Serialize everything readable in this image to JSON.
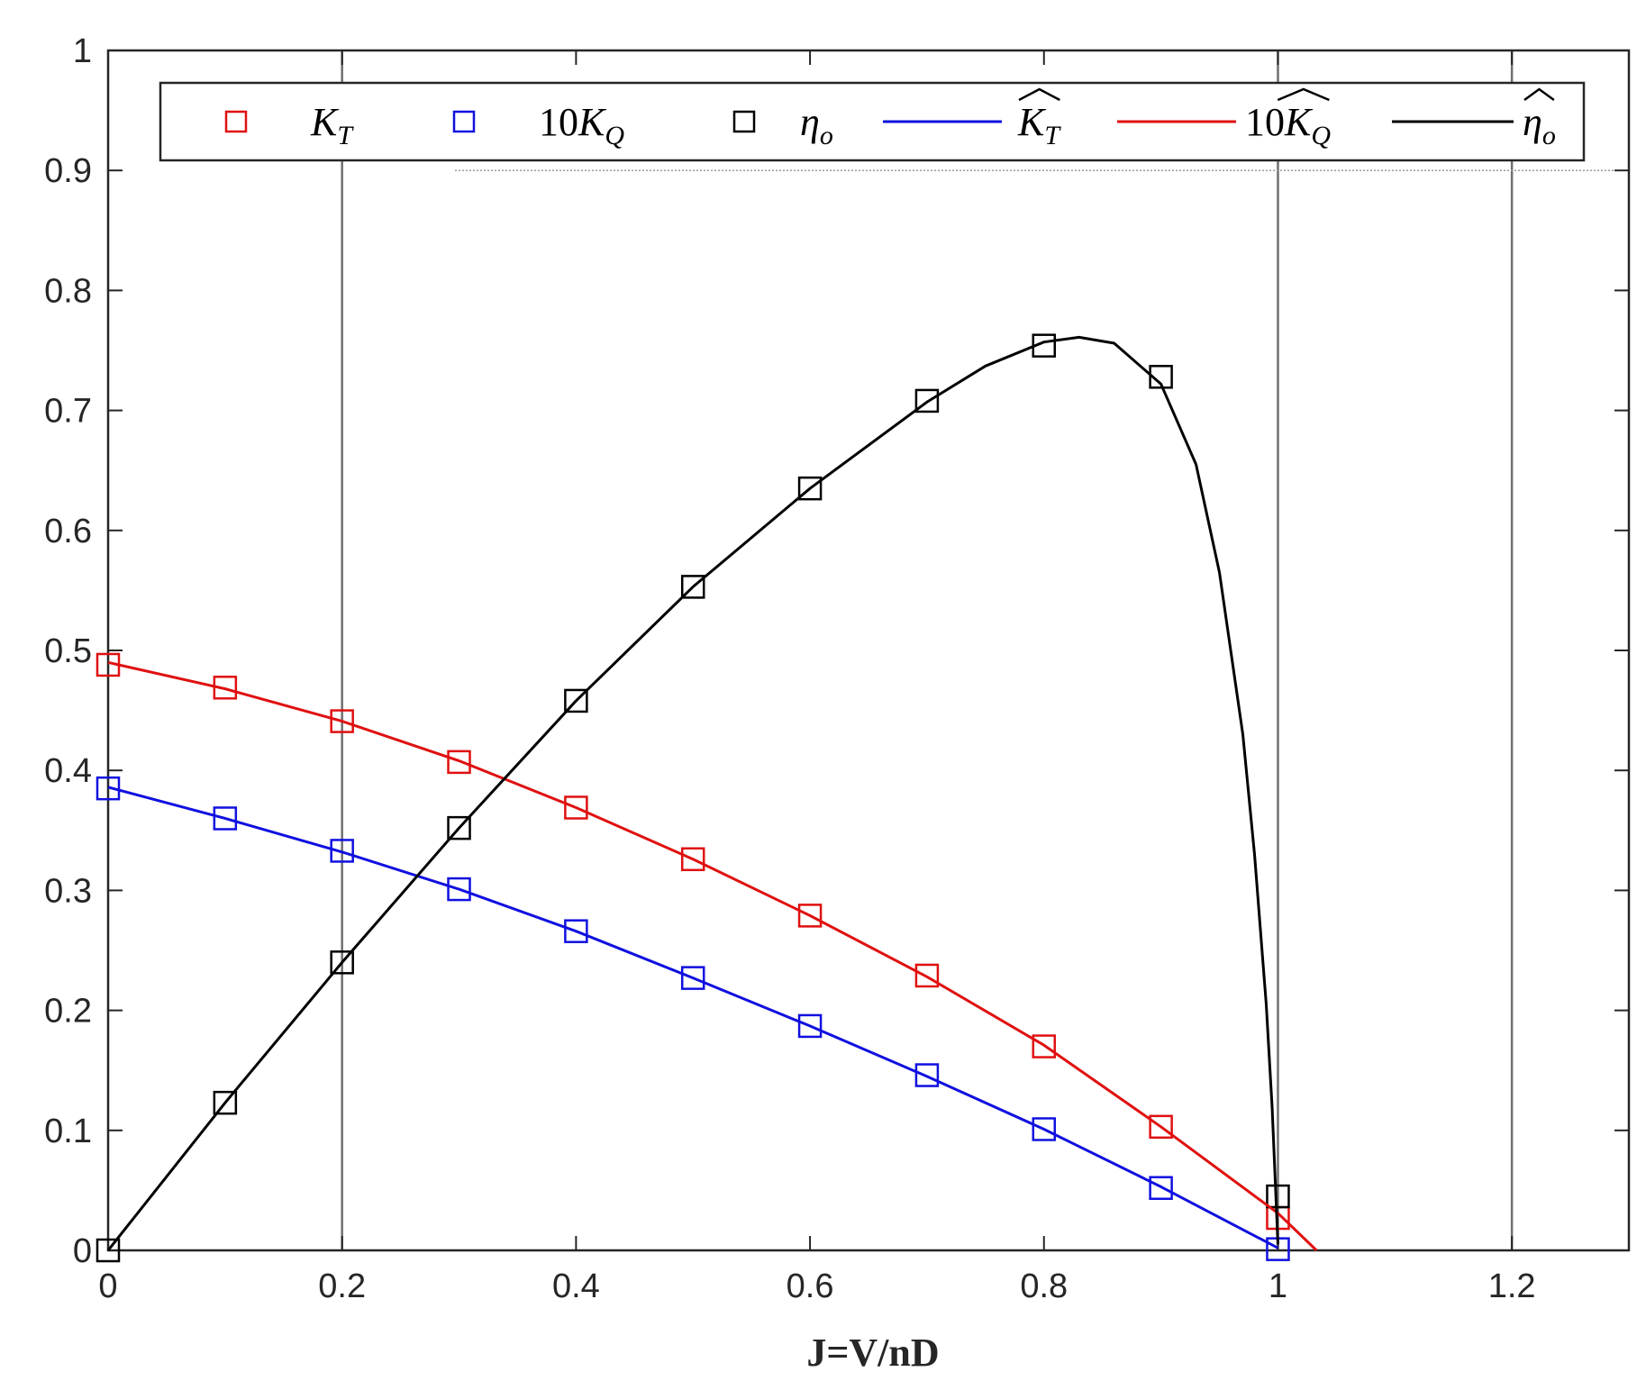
{
  "chart_data": {
    "type": "line",
    "xlabel": "J=V/nD",
    "ylabel": "",
    "xlim": [
      0,
      1.3
    ],
    "ylim": [
      0,
      1
    ],
    "xticks": [
      "0",
      "0.2",
      "0.4",
      "0.6",
      "0.8",
      "1",
      "1.2"
    ],
    "yticks": [
      "0",
      "0.1",
      "0.2",
      "0.3",
      "0.4",
      "0.5",
      "0.6",
      "0.7",
      "0.8",
      "0.9",
      "1"
    ],
    "vertical_gridlines": [
      0.2,
      1.0,
      1.2
    ],
    "legend_position": "top",
    "series": [
      {
        "name": "K_T",
        "kind": "markers",
        "marker": "square",
        "color": "#e01010",
        "x": [
          0,
          0.1,
          0.2,
          0.3,
          0.4,
          0.5,
          0.6,
          0.7,
          0.8,
          0.9,
          1.0
        ],
        "y": [
          0.488,
          0.469,
          0.441,
          0.407,
          0.369,
          0.326,
          0.279,
          0.229,
          0.17,
          0.103,
          0.027
        ]
      },
      {
        "name": "10K_Q",
        "kind": "markers",
        "marker": "square",
        "color": "#1010e0",
        "x": [
          0,
          0.1,
          0.2,
          0.3,
          0.4,
          0.5,
          0.6,
          0.7,
          0.8,
          0.9,
          1.0
        ],
        "y": [
          0.385,
          0.36,
          0.333,
          0.301,
          0.266,
          0.227,
          0.187,
          0.146,
          0.101,
          0.052,
          0.001
        ]
      },
      {
        "name": "η_o",
        "kind": "markers",
        "marker": "square",
        "color": "#000000",
        "x": [
          0,
          0.1,
          0.2,
          0.3,
          0.4,
          0.5,
          0.6,
          0.7,
          0.8,
          0.9,
          1.0
        ],
        "y": [
          0.0,
          0.123,
          0.24,
          0.352,
          0.458,
          0.553,
          0.635,
          0.708,
          0.754,
          0.728,
          0.045
        ]
      },
      {
        "name": "K_T fit",
        "kind": "line",
        "color": "#1010e0",
        "x": [
          0,
          0.1,
          0.2,
          0.3,
          0.4,
          0.5,
          0.6,
          0.7,
          0.8,
          0.9,
          1.0
        ],
        "y": [
          0.386,
          0.36,
          0.332,
          0.301,
          0.266,
          0.227,
          0.187,
          0.145,
          0.101,
          0.053,
          0.002
        ]
      },
      {
        "name": "10K_Q fit",
        "kind": "line",
        "color": "#e01010",
        "x": [
          0,
          0.1,
          0.2,
          0.3,
          0.4,
          0.5,
          0.6,
          0.7,
          0.8,
          0.9,
          1.0,
          1.033
        ],
        "y": [
          0.49,
          0.468,
          0.441,
          0.408,
          0.369,
          0.326,
          0.279,
          0.228,
          0.171,
          0.103,
          0.031,
          0.0
        ]
      },
      {
        "name": "η_o fit",
        "kind": "line",
        "color": "#000000",
        "x": [
          0,
          0.1,
          0.2,
          0.3,
          0.4,
          0.5,
          0.6,
          0.7,
          0.75,
          0.8,
          0.83,
          0.86,
          0.9,
          0.93,
          0.95,
          0.97,
          0.98,
          0.99,
          0.995,
          1.0
        ],
        "y": [
          0.0,
          0.123,
          0.24,
          0.352,
          0.458,
          0.553,
          0.635,
          0.707,
          0.737,
          0.757,
          0.761,
          0.756,
          0.722,
          0.655,
          0.565,
          0.43,
          0.33,
          0.205,
          0.12,
          0.005
        ]
      }
    ]
  },
  "legend": {
    "entries": [
      {
        "kind": "marker",
        "color": "#e01010",
        "base": "K",
        "sub": "T",
        "prefix": "",
        "hat": false
      },
      {
        "kind": "marker",
        "color": "#1010e0",
        "base": "K",
        "sub": "Q",
        "prefix": "10",
        "hat": false
      },
      {
        "kind": "marker",
        "color": "#000000",
        "base": "η",
        "sub": "o",
        "prefix": "",
        "hat": false
      },
      {
        "kind": "line",
        "color": "#1010e0",
        "base": "K",
        "sub": "T",
        "prefix": "",
        "hat": true
      },
      {
        "kind": "line",
        "color": "#e01010",
        "base": "K",
        "sub": "Q",
        "prefix": "10",
        "hat": true
      },
      {
        "kind": "line",
        "color": "#000000",
        "base": "η",
        "sub": "o",
        "prefix": "",
        "hat": true
      }
    ]
  }
}
